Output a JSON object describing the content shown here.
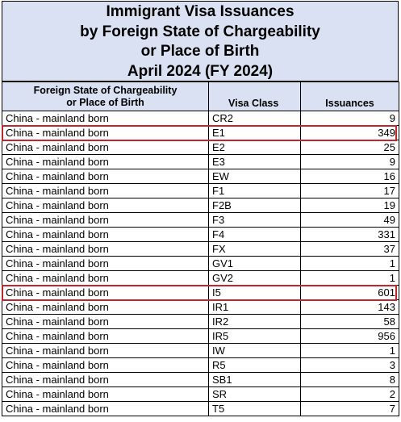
{
  "title": {
    "line1": "Immigrant Visa Issuances",
    "line2": "by Foreign State of Chargeability",
    "line3": "or Place of Birth",
    "line4": "April 2024 (FY 2024)"
  },
  "columns": {
    "state_line1": "Foreign State of Chargeability",
    "state_line2": "or Place of Birth",
    "visa_class": "Visa Class",
    "issuances": "Issuances"
  },
  "rows": [
    {
      "state": "China - mainland born",
      "visa_class": "CR2",
      "issuances": "9"
    },
    {
      "state": "China - mainland born",
      "visa_class": "E1",
      "issuances": "349"
    },
    {
      "state": "China - mainland born",
      "visa_class": "E2",
      "issuances": "25"
    },
    {
      "state": "China - mainland born",
      "visa_class": "E3",
      "issuances": "9"
    },
    {
      "state": "China - mainland born",
      "visa_class": "EW",
      "issuances": "16"
    },
    {
      "state": "China - mainland born",
      "visa_class": "F1",
      "issuances": "17"
    },
    {
      "state": "China - mainland born",
      "visa_class": "F2B",
      "issuances": "19"
    },
    {
      "state": "China - mainland born",
      "visa_class": "F3",
      "issuances": "49"
    },
    {
      "state": "China - mainland born",
      "visa_class": "F4",
      "issuances": "331"
    },
    {
      "state": "China - mainland born",
      "visa_class": "FX",
      "issuances": "37"
    },
    {
      "state": "China - mainland born",
      "visa_class": "GV1",
      "issuances": "1"
    },
    {
      "state": "China - mainland born",
      "visa_class": "GV2",
      "issuances": "1"
    },
    {
      "state": "China - mainland born",
      "visa_class": "I5",
      "issuances": "601"
    },
    {
      "state": "China - mainland born",
      "visa_class": "IR1",
      "issuances": "143"
    },
    {
      "state": "China - mainland born",
      "visa_class": "IR2",
      "issuances": "58"
    },
    {
      "state": "China - mainland born",
      "visa_class": "IR5",
      "issuances": "956"
    },
    {
      "state": "China - mainland born",
      "visa_class": "IW",
      "issuances": "1"
    },
    {
      "state": "China - mainland born",
      "visa_class": "R5",
      "issuances": "3"
    },
    {
      "state": "China - mainland born",
      "visa_class": "SB1",
      "issuances": "8"
    },
    {
      "state": "China - mainland born",
      "visa_class": "SR",
      "issuances": "2"
    },
    {
      "state": "China - mainland born",
      "visa_class": "T5",
      "issuances": "7"
    }
  ],
  "highlighted_visa_classes": [
    "E1",
    "I5"
  ],
  "highlight_color": "#c0272d",
  "header_bg_color": "#d9e1f2"
}
